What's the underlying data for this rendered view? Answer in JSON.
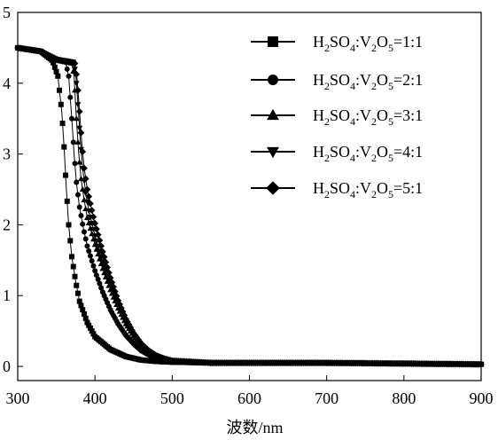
{
  "chart_data": {
    "type": "line",
    "title": "",
    "xlabel": "波数/nm",
    "ylabel": "",
    "xlim": [
      300,
      900
    ],
    "ylim": [
      -0.2,
      5
    ],
    "x_ticks": [
      300,
      400,
      500,
      600,
      700,
      800,
      900
    ],
    "y_ticks": [
      0,
      1,
      2,
      3,
      4,
      5
    ],
    "grid": false,
    "legend_position": "top-right",
    "series": [
      {
        "name": "H2SO4:V2O5=1:1",
        "legend": {
          "a": "H",
          "a_sub": "2",
          "b": "SO",
          "b_sub": "4",
          "c": ":V",
          "c_sub": "2",
          "d": "O",
          "d_sub": "5",
          "e": "=1:1"
        },
        "marker": "square",
        "points": [
          [
            300,
            4.5
          ],
          [
            330,
            4.45
          ],
          [
            345,
            4.32
          ],
          [
            352,
            4.1
          ],
          [
            357,
            3.6
          ],
          [
            360,
            3.1
          ],
          [
            363,
            2.5
          ],
          [
            366,
            2.0
          ],
          [
            370,
            1.55
          ],
          [
            375,
            1.2
          ],
          [
            380,
            0.92
          ],
          [
            390,
            0.62
          ],
          [
            400,
            0.42
          ],
          [
            420,
            0.24
          ],
          [
            440,
            0.14
          ],
          [
            460,
            0.09
          ],
          [
            480,
            0.07
          ],
          [
            500,
            0.06
          ],
          [
            550,
            0.05
          ],
          [
            600,
            0.05
          ],
          [
            700,
            0.05
          ],
          [
            800,
            0.04
          ],
          [
            900,
            0.03
          ]
        ]
      },
      {
        "name": "H2SO4:V2O5=2:1",
        "legend": {
          "a": "H",
          "a_sub": "2",
          "b": "SO",
          "b_sub": "4",
          "c": ":V",
          "c_sub": "2",
          "d": "O",
          "d_sub": "5",
          "e": "=2:1"
        },
        "marker": "circle",
        "points": [
          [
            300,
            4.5
          ],
          [
            330,
            4.45
          ],
          [
            350,
            4.33
          ],
          [
            362,
            4.3
          ],
          [
            366,
            4.1
          ],
          [
            370,
            3.5
          ],
          [
            373,
            3.0
          ],
          [
            376,
            2.6
          ],
          [
            380,
            2.25
          ],
          [
            385,
            1.95
          ],
          [
            390,
            1.7
          ],
          [
            400,
            1.35
          ],
          [
            410,
            1.05
          ],
          [
            420,
            0.8
          ],
          [
            430,
            0.6
          ],
          [
            440,
            0.44
          ],
          [
            450,
            0.32
          ],
          [
            460,
            0.22
          ],
          [
            470,
            0.16
          ],
          [
            480,
            0.12
          ],
          [
            490,
            0.09
          ],
          [
            500,
            0.07
          ],
          [
            550,
            0.05
          ],
          [
            600,
            0.05
          ],
          [
            700,
            0.05
          ],
          [
            800,
            0.04
          ],
          [
            900,
            0.03
          ]
        ]
      },
      {
        "name": "H2SO4:V2O5=3:1",
        "legend": {
          "a": "H",
          "a_sub": "2",
          "b": "SO",
          "b_sub": "4",
          "c": ":V",
          "c_sub": "2",
          "d": "O",
          "d_sub": "5",
          "e": "=3:1"
        },
        "marker": "triangle-up",
        "points": [
          [
            300,
            4.5
          ],
          [
            330,
            4.45
          ],
          [
            350,
            4.34
          ],
          [
            370,
            4.3
          ],
          [
            373,
            4.1
          ],
          [
            376,
            3.5
          ],
          [
            379,
            3.0
          ],
          [
            382,
            2.65
          ],
          [
            386,
            2.35
          ],
          [
            390,
            2.1
          ],
          [
            400,
            1.72
          ],
          [
            410,
            1.38
          ],
          [
            420,
            1.08
          ],
          [
            430,
            0.82
          ],
          [
            440,
            0.6
          ],
          [
            450,
            0.43
          ],
          [
            460,
            0.3
          ],
          [
            470,
            0.2
          ],
          [
            480,
            0.14
          ],
          [
            490,
            0.1
          ],
          [
            500,
            0.08
          ],
          [
            550,
            0.05
          ],
          [
            600,
            0.05
          ],
          [
            700,
            0.05
          ],
          [
            800,
            0.04
          ],
          [
            900,
            0.03
          ]
        ]
      },
      {
        "name": "H2SO4:V2O5=4:1",
        "legend": {
          "a": "H",
          "a_sub": "2",
          "b": "SO",
          "b_sub": "4",
          "c": ":V",
          "c_sub": "2",
          "d": "O",
          "d_sub": "5",
          "e": "=4:1"
        },
        "marker": "triangle-down",
        "points": [
          [
            300,
            4.5
          ],
          [
            330,
            4.45
          ],
          [
            350,
            4.34
          ],
          [
            372,
            4.3
          ],
          [
            375,
            4.15
          ],
          [
            378,
            3.7
          ],
          [
            381,
            3.2
          ],
          [
            384,
            2.8
          ],
          [
            388,
            2.45
          ],
          [
            392,
            2.2
          ],
          [
            400,
            1.85
          ],
          [
            410,
            1.48
          ],
          [
            420,
            1.15
          ],
          [
            430,
            0.86
          ],
          [
            440,
            0.62
          ],
          [
            450,
            0.44
          ],
          [
            460,
            0.3
          ],
          [
            470,
            0.2
          ],
          [
            480,
            0.14
          ],
          [
            490,
            0.1
          ],
          [
            500,
            0.08
          ],
          [
            550,
            0.05
          ],
          [
            600,
            0.05
          ],
          [
            700,
            0.05
          ],
          [
            800,
            0.04
          ],
          [
            900,
            0.03
          ]
        ]
      },
      {
        "name": "H2SO4:V2O5=5:1",
        "legend": {
          "a": "H",
          "a_sub": "2",
          "b": "SO",
          "b_sub": "4",
          "c": ":V",
          "c_sub": "2",
          "d": "O",
          "d_sub": "5",
          "e": "=5:1"
        },
        "marker": "diamond",
        "points": [
          [
            300,
            4.5
          ],
          [
            330,
            4.45
          ],
          [
            350,
            4.33
          ],
          [
            374,
            4.28
          ],
          [
            377,
            4.05
          ],
          [
            380,
            3.6
          ],
          [
            383,
            3.15
          ],
          [
            386,
            2.8
          ],
          [
            390,
            2.5
          ],
          [
            395,
            2.25
          ],
          [
            400,
            2.02
          ],
          [
            410,
            1.62
          ],
          [
            420,
            1.25
          ],
          [
            430,
            0.93
          ],
          [
            440,
            0.67
          ],
          [
            450,
            0.47
          ],
          [
            460,
            0.32
          ],
          [
            470,
            0.22
          ],
          [
            480,
            0.15
          ],
          [
            490,
            0.11
          ],
          [
            500,
            0.08
          ],
          [
            550,
            0.05
          ],
          [
            600,
            0.05
          ],
          [
            700,
            0.05
          ],
          [
            800,
            0.04
          ],
          [
            900,
            0.03
          ]
        ]
      }
    ]
  }
}
